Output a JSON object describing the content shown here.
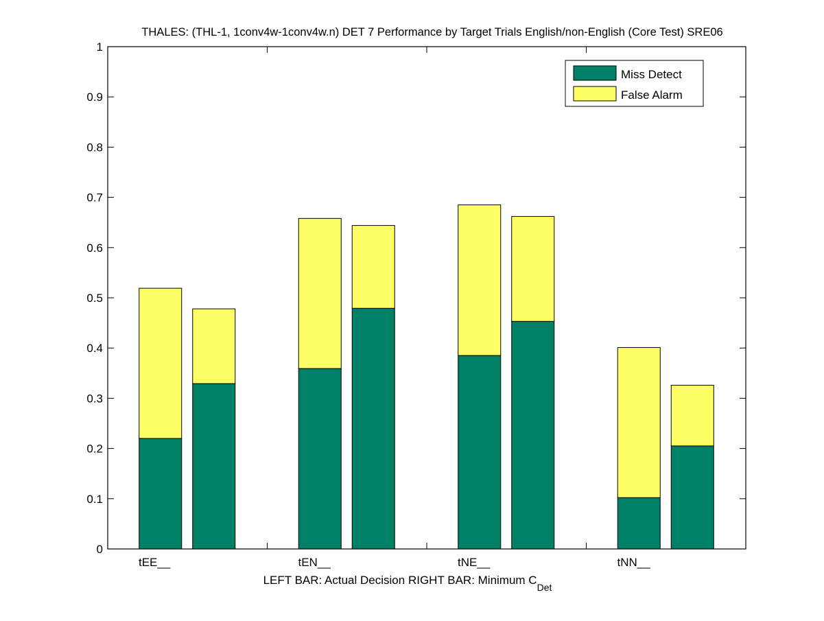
{
  "chart_data": {
    "type": "bar",
    "stacked": true,
    "title": "THALES: (THL-1, 1conv4w-1conv4w.n) DET 7 Performance by Target Trials English/non-English (Core Test) SRE06",
    "xlabel": {
      "left_part": "LEFT BAR: Actual Decision",
      "right_part": "RIGHT BAR: Minimum C",
      "subscript": "Det"
    },
    "ylabel": "",
    "ylim": [
      0,
      1
    ],
    "yticks": [
      0,
      0.1,
      0.2,
      0.3,
      0.4,
      0.5,
      0.6,
      0.7,
      0.8,
      0.9,
      1
    ],
    "ytick_labels": [
      "0",
      "0.1",
      "0.2",
      "0.3",
      "0.4",
      "0.5",
      "0.6",
      "0.7",
      "0.8",
      "0.9",
      "1"
    ],
    "categories": [
      "tEE__",
      "tEN__",
      "tNE__",
      "tNN__"
    ],
    "bar_roles": [
      "Actual Decision",
      "Minimum CDet"
    ],
    "legend": {
      "position": "top-right",
      "entries": [
        {
          "label": "Miss Detect",
          "color": "#008066"
        },
        {
          "label": "False Alarm",
          "color": "#FFFF66"
        }
      ]
    },
    "series": [
      {
        "name": "Miss Detect",
        "color": "#008066",
        "actual": [
          0.22,
          0.359,
          0.385,
          0.102
        ],
        "minimum": [
          0.329,
          0.479,
          0.453,
          0.205
        ]
      },
      {
        "name": "False Alarm",
        "color": "#FFFF66",
        "actual": [
          0.299,
          0.299,
          0.3,
          0.299
        ],
        "minimum": [
          0.149,
          0.165,
          0.209,
          0.121
        ]
      }
    ],
    "totals": {
      "actual": [
        0.519,
        0.658,
        0.685,
        0.401
      ],
      "minimum": [
        0.478,
        0.644,
        0.662,
        0.326
      ]
    },
    "grid": false
  }
}
